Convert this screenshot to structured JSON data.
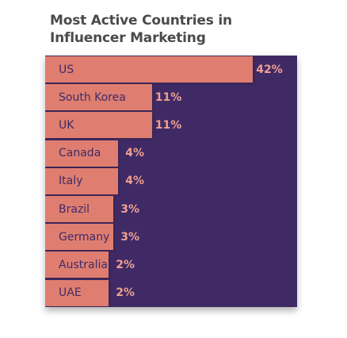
{
  "chart_data": {
    "type": "bar",
    "orientation": "horizontal",
    "title": "Most Active Countries in Influencer Marketing",
    "categories": [
      "US",
      "South Korea",
      "UK",
      "Canada",
      "Italy",
      "Brazil",
      "Germany",
      "Australia",
      "UAE"
    ],
    "values": [
      42,
      11,
      11,
      4,
      4,
      3,
      3,
      2,
      2
    ],
    "value_labels": [
      "42%",
      "11%",
      "11%",
      "4%",
      "4%",
      "3%",
      "3%",
      "2%",
      "2%"
    ],
    "unit": "%",
    "xlabel": "",
    "ylabel": "",
    "grid": false,
    "legend": "none",
    "colors": {
      "bar": "#df7e70",
      "background": "#3f2a66",
      "category_text": "#3f2a66",
      "value_text": "#efa08f",
      "title_text": "#4a4a4a"
    }
  }
}
